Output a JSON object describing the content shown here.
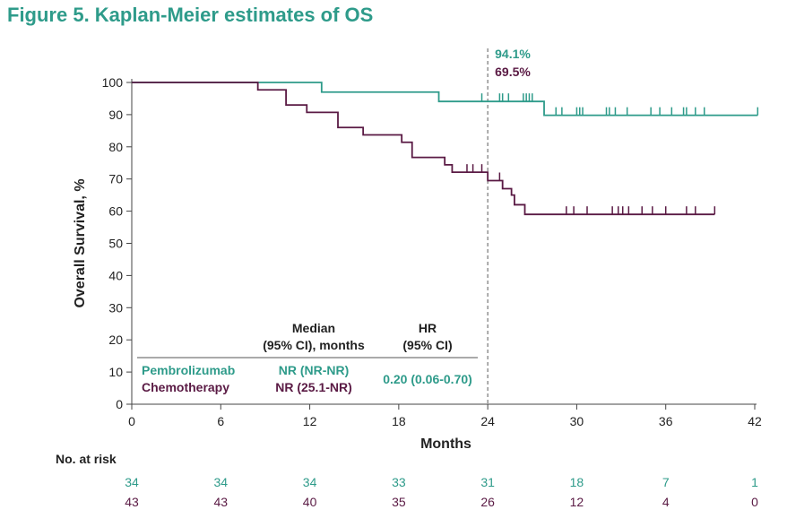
{
  "figure_title": "Figure 5. Kaplan-Meier estimates of OS",
  "chart_data": {
    "type": "line",
    "title": "Figure 5. Kaplan-Meier estimates of OS",
    "xlabel": "Months",
    "ylabel": "Overall Survival, %",
    "xlim": [
      0,
      42
    ],
    "ylim": [
      0,
      100
    ],
    "x_ticks": [
      0,
      6,
      12,
      18,
      24,
      30,
      36,
      42
    ],
    "y_ticks": [
      0,
      10,
      20,
      30,
      40,
      50,
      60,
      70,
      80,
      90,
      100
    ],
    "colors": {
      "pembrolizumab": "#2e9b8a",
      "chemotherapy": "#5a1a44"
    },
    "series": [
      {
        "name": "Pembrolizumab",
        "color": "#2e9b8a",
        "steps": [
          [
            0,
            100
          ],
          [
            12.8,
            97
          ],
          [
            20.7,
            94.1
          ],
          [
            27.8,
            89.8
          ],
          [
            42.2,
            89.8
          ]
        ],
        "censors": [
          23.6,
          24.8,
          25,
          25.4,
          26.4,
          26.6,
          26.8,
          27,
          28.6,
          29,
          30,
          30.2,
          30.4,
          32,
          32.2,
          32.6,
          33.4,
          35,
          35.6,
          36.4,
          37.2,
          37.4,
          38,
          38.6,
          42.2
        ]
      },
      {
        "name": "Chemotherapy",
        "color": "#5a1a44",
        "steps": [
          [
            0,
            100
          ],
          [
            8.5,
            97.7
          ],
          [
            10.4,
            93
          ],
          [
            11.8,
            90.7
          ],
          [
            13.9,
            86
          ],
          [
            15.6,
            83.7
          ],
          [
            18.2,
            81.4
          ],
          [
            18.9,
            76.7
          ],
          [
            21.1,
            74.4
          ],
          [
            21.6,
            72.1
          ],
          [
            24,
            69.5
          ],
          [
            25,
            67
          ],
          [
            25.6,
            65
          ],
          [
            25.8,
            62
          ],
          [
            26.5,
            59
          ],
          [
            39.3,
            59
          ]
        ],
        "censors": [
          22.6,
          23,
          23.6,
          24.8,
          25,
          29.3,
          29.8,
          30.7,
          32.4,
          32.8,
          33.1,
          33.5,
          34.4,
          35.1,
          36,
          37.4,
          38,
          39.3
        ]
      }
    ],
    "reference_line_x": 24,
    "annotations": [
      {
        "text": "94.1%",
        "series": "Pembrolizumab"
      },
      {
        "text": "69.5%",
        "series": "Chemotherapy"
      }
    ],
    "summary_table": {
      "col_median_line1": "Median",
      "col_median_line2": "(95% CI), months",
      "col_hr_line1": "HR",
      "col_hr_line2": "(95% CI)",
      "rows": [
        {
          "name": "Pembrolizumab",
          "median": "NR (NR-NR)"
        },
        {
          "name": "Chemotherapy",
          "median": "NR (25.1-NR)"
        }
      ],
      "hr": "0.20 (0.06-0.70)"
    },
    "at_risk": {
      "title": "No. at risk",
      "times": [
        0,
        6,
        12,
        18,
        24,
        30,
        36,
        42
      ],
      "rows": [
        {
          "name": "Pembrolizumab",
          "values": [
            "34",
            "34",
            "34",
            "33",
            "31",
            "18",
            "7",
            "1"
          ]
        },
        {
          "name": "Chemotherapy",
          "values": [
            "43",
            "43",
            "40",
            "35",
            "26",
            "12",
            "4",
            "0"
          ]
        }
      ]
    }
  }
}
